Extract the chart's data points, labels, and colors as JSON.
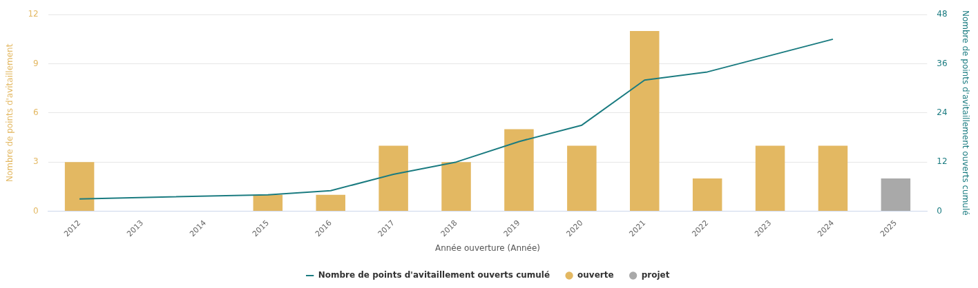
{
  "chart_data": {
    "type": "bar",
    "xlabel": "Année ouverture (Année)",
    "ylabel": "Nombre de points d'avitaillement",
    "y2label": "Nombre de points d'avitaillement ouverts cumulé",
    "categories": [
      "2012",
      "2013",
      "2014",
      "2015",
      "2016",
      "2017",
      "2018",
      "2019",
      "2020",
      "2021",
      "2022",
      "2023",
      "2024",
      "2025"
    ],
    "series": [
      {
        "name": "ouverte",
        "color": "#e3b862",
        "values": [
          3,
          null,
          null,
          1,
          1,
          4,
          3,
          5,
          4,
          11,
          2,
          4,
          4,
          null
        ]
      },
      {
        "name": "projet",
        "color": "#a9a9a9",
        "values": [
          null,
          null,
          null,
          null,
          null,
          null,
          null,
          null,
          null,
          null,
          null,
          null,
          null,
          2
        ]
      },
      {
        "name": "Nombre de points d'avitaillement ouverts cumulé",
        "type": "line",
        "axis": "y2",
        "color": "#1a7b80",
        "values": [
          3,
          null,
          null,
          4,
          5,
          9,
          12,
          17,
          21,
          32,
          34,
          38,
          42,
          null
        ]
      }
    ],
    "ylim": [
      0,
      12
    ],
    "yticks": [
      0,
      3,
      6,
      9,
      12
    ],
    "y2lim": [
      0,
      48
    ],
    "y2ticks": [
      0,
      12,
      24,
      36,
      48
    ],
    "grid": "y",
    "legend": "bottom",
    "marker": "none",
    "line_style": "solid"
  }
}
